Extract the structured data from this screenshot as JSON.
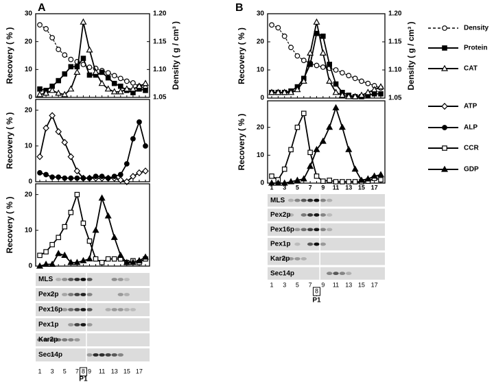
{
  "panels": [
    {
      "label": "A"
    },
    {
      "label": "B"
    }
  ],
  "chart_data": [
    {
      "type": "line",
      "y_label": "Recovery ( % )",
      "y2_label": "Density ( g / cm³ )",
      "x": [
        1,
        2,
        3,
        4,
        5,
        6,
        7,
        8,
        9,
        10,
        11,
        12,
        13,
        14,
        15,
        16,
        17,
        18
      ],
      "ylim": [
        0,
        30
      ],
      "yticks": [
        0,
        10,
        20,
        30
      ],
      "y2lim": [
        1.05,
        1.2
      ],
      "y2ticks": [
        1.05,
        {
          "value": 1.1,
          "label": "1.10"
        },
        1.15,
        {
          "value": 1.2,
          "label": "1.20"
        }
      ],
      "series": [
        {
          "name": "Density",
          "color": "#000000",
          "marker": "circle",
          "filled": false,
          "dashed": true,
          "axis": "y2",
          "values": [
            1.18,
            1.173,
            1.157,
            1.136,
            1.126,
            1.118,
            1.114,
            1.109,
            1.104,
            1.102,
            1.098,
            1.094,
            1.089,
            1.084,
            1.079,
            1.076,
            1.07,
            1.067
          ]
        },
        {
          "name": "Protein",
          "color": "#000000",
          "marker": "square",
          "filled": true,
          "dashed": false,
          "values": [
            3,
            2.5,
            4,
            6,
            8.4,
            11,
            11,
            14,
            8,
            8,
            9,
            7,
            5,
            4,
            2.5,
            1.7,
            3,
            2.5
          ]
        },
        {
          "name": "CAT",
          "color": "#000000",
          "marker": "triangle",
          "filled": false,
          "dashed": false,
          "values": [
            1,
            1.5,
            2.5,
            1.5,
            1,
            3,
            9,
            27,
            17,
            9,
            5,
            3,
            2,
            2,
            3,
            3,
            4,
            5
          ]
        }
      ]
    },
    {
      "type": "line",
      "y_label": "Recovery ( % )",
      "x": [
        1,
        2,
        3,
        4,
        5,
        6,
        7,
        8,
        9,
        10,
        11,
        12,
        13,
        14,
        15,
        16,
        17,
        18
      ],
      "ylim": [
        0,
        23
      ],
      "yticks": [
        0,
        10,
        20
      ],
      "series": [
        {
          "name": "ATP",
          "color": "#000000",
          "marker": "diamond",
          "filled": false,
          "dashed": false,
          "values": [
            7,
            15,
            18.5,
            14,
            11,
            7,
            3,
            1,
            1,
            1,
            1,
            1,
            1,
            0.5,
            0,
            1.5,
            2.5,
            3
          ]
        },
        {
          "name": "ALP",
          "color": "#000000",
          "marker": "circle",
          "filled": true,
          "dashed": false,
          "values": [
            2.5,
            2,
            1.3,
            1.3,
            1,
            1,
            1,
            1,
            1,
            1.5,
            1.5,
            1,
            1.5,
            2,
            5,
            12,
            16.7,
            10
          ]
        }
      ]
    },
    {
      "type": "line",
      "y_label": "Recovery ( % )",
      "x": [
        1,
        2,
        3,
        4,
        5,
        6,
        7,
        8,
        9,
        10,
        11,
        12,
        13,
        14,
        15,
        16,
        17,
        18
      ],
      "ylim": [
        0,
        23
      ],
      "yticks": [
        0,
        10,
        20
      ],
      "series": [
        {
          "name": "CCR",
          "color": "#000000",
          "marker": "square",
          "filled": false,
          "dashed": false,
          "values": [
            3,
            4,
            6,
            8,
            11,
            15,
            20,
            12,
            7,
            2,
            1,
            2,
            2,
            2,
            1,
            1.5,
            1,
            2
          ]
        },
        {
          "name": "GDP",
          "color": "#000000",
          "marker": "triangle",
          "filled": true,
          "dashed": false,
          "values": [
            0,
            0.5,
            0.5,
            3.5,
            3,
            1,
            1,
            1.5,
            2,
            10,
            19,
            14,
            8,
            3,
            1,
            1,
            1.5,
            2.5
          ]
        }
      ]
    },
    {
      "type": "line",
      "y_label": "Recovery ( % )",
      "y2_label": "Density ( g / cm³ )",
      "x": [
        1,
        2,
        3,
        4,
        5,
        6,
        7,
        8,
        9,
        10,
        11,
        12,
        13,
        14,
        15,
        16,
        17,
        18
      ],
      "ylim": [
        0,
        30
      ],
      "yticks": [
        0,
        10,
        20,
        30
      ],
      "y2lim": [
        1.05,
        1.2
      ],
      "y2ticks": [
        1.05,
        {
          "value": 1.1,
          "label": "1.10"
        },
        1.15,
        {
          "value": 1.2,
          "label": "1.20"
        }
      ],
      "series": [
        {
          "name": "Density",
          "color": "#000000",
          "marker": "circle",
          "filled": false,
          "dashed": true,
          "axis": "y2",
          "values": [
            1.18,
            1.175,
            1.16,
            1.14,
            1.125,
            1.117,
            1.112,
            1.108,
            1.105,
            1.103,
            1.1,
            1.095,
            1.09,
            1.085,
            1.08,
            1.076,
            1.072,
            1.068
          ]
        },
        {
          "name": "Protein",
          "color": "#000000",
          "marker": "square",
          "filled": true,
          "dashed": false,
          "values": [
            2,
            2,
            2,
            2.5,
            4,
            7,
            12,
            23,
            22,
            12,
            5,
            2,
            1,
            0.5,
            0.5,
            1,
            1.5,
            1.5
          ]
        },
        {
          "name": "CAT",
          "color": "#000000",
          "marker": "triangle",
          "filled": false,
          "dashed": false,
          "values": [
            2,
            2,
            2,
            2,
            3,
            6,
            16,
            27,
            16,
            6,
            2,
            1,
            0.5,
            0.5,
            1,
            2,
            3,
            4
          ]
        }
      ]
    },
    {
      "type": "line",
      "y_label": "Recovery ( % )",
      "x": [
        1,
        2,
        3,
        4,
        5,
        6,
        7,
        8,
        9,
        10,
        11,
        12,
        13,
        14,
        15,
        16,
        17,
        18
      ],
      "xticks": [
        1,
        3,
        5,
        7,
        9,
        11,
        13,
        15,
        17
      ],
      "ylim": [
        0,
        29.5
      ],
      "yticks": [
        0,
        10,
        20
      ],
      "series": [
        {
          "name": "CCR",
          "color": "#000000",
          "marker": "square",
          "filled": false,
          "dashed": false,
          "values": [
            2.5,
            1.2,
            5,
            12,
            20,
            25,
            11,
            2.5,
            0.7,
            1,
            0.5,
            0.5,
            0.5,
            0.5,
            0.5,
            0.7,
            1.7,
            1.2
          ]
        },
        {
          "name": "GDP",
          "color": "#000000",
          "marker": "triangle",
          "filled": true,
          "dashed": false,
          "values": [
            0,
            0,
            0,
            0.5,
            1,
            1.5,
            6,
            12,
            15,
            20,
            27,
            20,
            12,
            5,
            1,
            1.5,
            2.5,
            3
          ]
        }
      ]
    }
  ],
  "blots": [
    {
      "rows": [
        "MLS",
        "Pex2p",
        "Pex16p",
        "Pex1p",
        "Kar2p",
        "Sec14p"
      ],
      "lanes": [
        1,
        3,
        5,
        7,
        9,
        11,
        13,
        15,
        17
      ],
      "marked_lane": 8,
      "fraction_label": "P1"
    },
    {
      "rows": [
        "MLS",
        "Pex2p",
        "Pex16p",
        "Pex1p",
        "Kar2p",
        "Sec14p"
      ],
      "lanes": [
        1,
        3,
        5,
        7,
        9,
        11,
        13,
        15,
        17
      ],
      "marked_lane": 8,
      "fraction_label": "P1"
    }
  ]
}
